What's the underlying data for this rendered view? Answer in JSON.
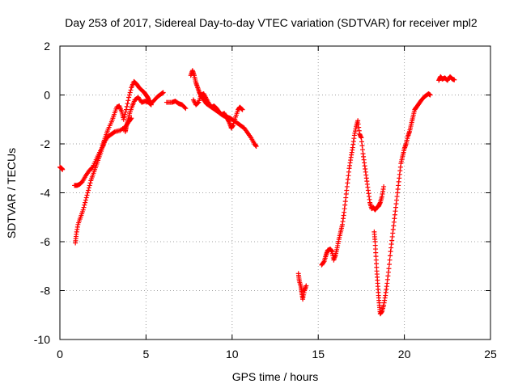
{
  "chart_data": {
    "type": "scatter",
    "title": "Day 253 of 2017, Sidereal Day-to-day VTEC variation (SDTVAR) for receiver mpl2",
    "xlabel": "GPS time / hours",
    "ylabel": "SDTVAR / TECUs",
    "xlim": [
      0,
      25
    ],
    "ylim": [
      -10,
      2
    ],
    "xticks": [
      0,
      5,
      10,
      15,
      20,
      25
    ],
    "yticks": [
      -10,
      -8,
      -6,
      -4,
      -2,
      0,
      2
    ],
    "xtick_labels": [
      "0",
      "5",
      "10",
      "15",
      "20",
      "25"
    ],
    "ytick_labels": [
      "-10",
      "-8",
      "-6",
      "-4",
      "-2",
      "0",
      "2"
    ],
    "grid": true,
    "marker": "+",
    "series": [
      {
        "name": "SDTVAR",
        "color": "#ff0000",
        "segments": [
          [
            [
              0.0,
              -2.95
            ],
            [
              0.1,
              -3.0
            ],
            [
              0.15,
              -3.05
            ]
          ],
          [
            [
              0.85,
              -3.7
            ],
            [
              1.0,
              -3.7
            ],
            [
              1.15,
              -3.65
            ],
            [
              1.3,
              -3.55
            ],
            [
              1.5,
              -3.3
            ],
            [
              1.7,
              -3.1
            ],
            [
              1.9,
              -2.95
            ],
            [
              2.1,
              -2.65
            ],
            [
              2.3,
              -2.35
            ],
            [
              2.5,
              -2.1
            ],
            [
              2.6,
              -1.9
            ],
            [
              2.8,
              -1.7
            ],
            [
              3.0,
              -1.6
            ],
            [
              3.2,
              -1.5
            ],
            [
              3.5,
              -1.45
            ],
            [
              3.8,
              -1.3
            ],
            [
              4.0,
              -1.1
            ],
            [
              4.15,
              -0.95
            ]
          ],
          [
            [
              0.9,
              -6.05
            ],
            [
              0.95,
              -5.7
            ],
            [
              1.05,
              -5.3
            ],
            [
              1.2,
              -5.0
            ],
            [
              1.35,
              -4.7
            ],
            [
              1.5,
              -4.3
            ],
            [
              1.65,
              -3.9
            ],
            [
              1.8,
              -3.5
            ],
            [
              1.95,
              -3.2
            ],
            [
              2.1,
              -2.9
            ],
            [
              2.25,
              -2.6
            ],
            [
              2.4,
              -2.3
            ],
            [
              2.5,
              -2.0
            ],
            [
              2.65,
              -1.7
            ],
            [
              2.8,
              -1.4
            ],
            [
              3.0,
              -1.1
            ],
            [
              3.15,
              -0.8
            ],
            [
              3.3,
              -0.5
            ],
            [
              3.45,
              -0.45
            ],
            [
              3.6,
              -0.7
            ],
            [
              3.7,
              -1.0
            ],
            [
              3.85,
              -0.6
            ],
            [
              4.0,
              -0.1
            ],
            [
              4.15,
              0.3
            ],
            [
              4.3,
              0.55
            ],
            [
              4.45,
              0.45
            ],
            [
              4.6,
              0.3
            ],
            [
              4.75,
              0.2
            ],
            [
              4.9,
              0.1
            ],
            [
              5.0,
              0.0
            ],
            [
              5.1,
              -0.1
            ],
            [
              5.2,
              -0.25
            ],
            [
              5.3,
              -0.4
            ],
            [
              5.15,
              -0.3
            ],
            [
              4.95,
              -0.25
            ],
            [
              4.75,
              -0.3
            ],
            [
              4.55,
              -0.1
            ],
            [
              4.35,
              -0.2
            ],
            [
              4.2,
              -0.45
            ],
            [
              4.05,
              -0.75
            ],
            [
              3.95,
              -1.05
            ],
            [
              3.85,
              -1.3
            ],
            [
              3.8,
              -1.5
            ]
          ],
          [
            [
              5.3,
              -0.35
            ],
            [
              5.5,
              -0.2
            ],
            [
              5.7,
              -0.05
            ],
            [
              5.9,
              0.05
            ],
            [
              6.0,
              0.1
            ]
          ],
          [
            [
              6.2,
              -0.3
            ],
            [
              6.5,
              -0.3
            ],
            [
              6.7,
              -0.25
            ],
            [
              6.9,
              -0.35
            ],
            [
              7.1,
              -0.4
            ],
            [
              7.3,
              -0.55
            ]
          ],
          [
            [
              7.6,
              0.8
            ],
            [
              7.7,
              1.0
            ],
            [
              7.8,
              0.8
            ],
            [
              7.9,
              0.5
            ],
            [
              8.0,
              0.3
            ],
            [
              8.1,
              0.1
            ],
            [
              8.2,
              -0.05
            ],
            [
              8.35,
              -0.2
            ],
            [
              8.5,
              -0.35
            ],
            [
              8.7,
              -0.45
            ],
            [
              8.9,
              -0.55
            ],
            [
              9.1,
              -0.65
            ],
            [
              9.3,
              -0.75
            ],
            [
              9.5,
              -0.85
            ],
            [
              9.7,
              -0.9
            ],
            [
              9.9,
              -0.95
            ],
            [
              10.1,
              -1.05
            ],
            [
              10.3,
              -1.15
            ],
            [
              10.5,
              -1.25
            ],
            [
              10.7,
              -1.35
            ],
            [
              10.9,
              -1.55
            ],
            [
              11.1,
              -1.75
            ],
            [
              11.3,
              -2.0
            ],
            [
              11.4,
              -2.1
            ]
          ],
          [
            [
              7.75,
              -0.2
            ],
            [
              7.9,
              -0.4
            ],
            [
              8.05,
              -0.3
            ],
            [
              8.2,
              0.0
            ],
            [
              8.35,
              0.05
            ],
            [
              8.5,
              -0.15
            ],
            [
              8.65,
              -0.35
            ],
            [
              8.8,
              -0.5
            ],
            [
              8.95,
              -0.45
            ],
            [
              9.1,
              -0.55
            ],
            [
              9.25,
              -0.7
            ],
            [
              9.4,
              -0.8
            ],
            [
              9.55,
              -0.75
            ],
            [
              9.7,
              -0.95
            ],
            [
              9.85,
              -1.15
            ],
            [
              9.95,
              -1.35
            ],
            [
              10.05,
              -1.25
            ],
            [
              10.2,
              -0.9
            ],
            [
              10.35,
              -0.6
            ],
            [
              10.45,
              -0.5
            ],
            [
              10.6,
              -0.6
            ]
          ],
          [
            [
              13.85,
              -7.3
            ],
            [
              13.9,
              -7.6
            ],
            [
              14.0,
              -7.85
            ],
            [
              14.05,
              -8.1
            ],
            [
              14.1,
              -8.35
            ],
            [
              14.2,
              -8.0
            ],
            [
              14.3,
              -7.8
            ]
          ],
          [
            [
              15.2,
              -6.95
            ],
            [
              15.35,
              -6.8
            ],
            [
              15.45,
              -6.55
            ],
            [
              15.55,
              -6.35
            ],
            [
              15.7,
              -6.3
            ],
            [
              15.8,
              -6.4
            ],
            [
              15.9,
              -6.75
            ],
            [
              16.0,
              -6.55
            ],
            [
              16.1,
              -6.25
            ],
            [
              16.2,
              -5.9
            ],
            [
              16.3,
              -5.6
            ],
            [
              16.4,
              -5.3
            ],
            [
              16.5,
              -4.8
            ],
            [
              16.6,
              -4.2
            ],
            [
              16.7,
              -3.6
            ],
            [
              16.8,
              -3.0
            ],
            [
              16.9,
              -2.55
            ],
            [
              17.0,
              -2.15
            ],
            [
              17.1,
              -1.65
            ],
            [
              17.2,
              -1.3
            ],
            [
              17.3,
              -1.05
            ],
            [
              17.4,
              -1.6
            ],
            [
              17.5,
              -1.75
            ],
            [
              17.6,
              -2.4
            ],
            [
              17.7,
              -2.9
            ],
            [
              17.8,
              -3.4
            ],
            [
              17.9,
              -3.9
            ],
            [
              18.0,
              -4.4
            ],
            [
              18.1,
              -4.65
            ],
            [
              18.2,
              -4.6
            ],
            [
              18.3,
              -4.7
            ],
            [
              18.4,
              -4.6
            ],
            [
              18.5,
              -4.55
            ],
            [
              18.6,
              -4.4
            ],
            [
              18.7,
              -4.15
            ],
            [
              18.8,
              -3.75
            ]
          ],
          [
            [
              18.25,
              -5.6
            ],
            [
              18.3,
              -6.0
            ],
            [
              18.35,
              -6.6
            ],
            [
              18.4,
              -7.2
            ],
            [
              18.45,
              -7.7
            ],
            [
              18.5,
              -8.2
            ],
            [
              18.55,
              -8.6
            ],
            [
              18.6,
              -8.95
            ],
            [
              18.7,
              -8.85
            ],
            [
              18.8,
              -8.6
            ],
            [
              18.9,
              -8.2
            ],
            [
              19.0,
              -7.7
            ],
            [
              19.1,
              -7.1
            ],
            [
              19.2,
              -6.4
            ],
            [
              19.3,
              -5.8
            ],
            [
              19.4,
              -5.2
            ],
            [
              19.5,
              -4.6
            ],
            [
              19.6,
              -4.0
            ],
            [
              19.7,
              -3.4
            ],
            [
              19.8,
              -2.8
            ],
            [
              19.9,
              -2.5
            ],
            [
              20.0,
              -2.2
            ],
            [
              20.1,
              -2.0
            ],
            [
              20.2,
              -1.7
            ],
            [
              20.3,
              -1.5
            ],
            [
              20.4,
              -1.2
            ],
            [
              20.5,
              -0.9
            ],
            [
              20.6,
              -0.6
            ],
            [
              20.7,
              -0.5
            ],
            [
              20.85,
              -0.35
            ],
            [
              21.0,
              -0.2
            ],
            [
              21.2,
              -0.05
            ],
            [
              21.4,
              0.05
            ],
            [
              21.5,
              0.0
            ]
          ],
          [
            [
              22.0,
              0.6
            ],
            [
              22.1,
              0.75
            ],
            [
              22.2,
              0.65
            ],
            [
              22.35,
              0.7
            ],
            [
              22.5,
              0.6
            ],
            [
              22.65,
              0.75
            ],
            [
              22.8,
              0.65
            ],
            [
              22.9,
              0.62
            ]
          ]
        ]
      }
    ]
  }
}
